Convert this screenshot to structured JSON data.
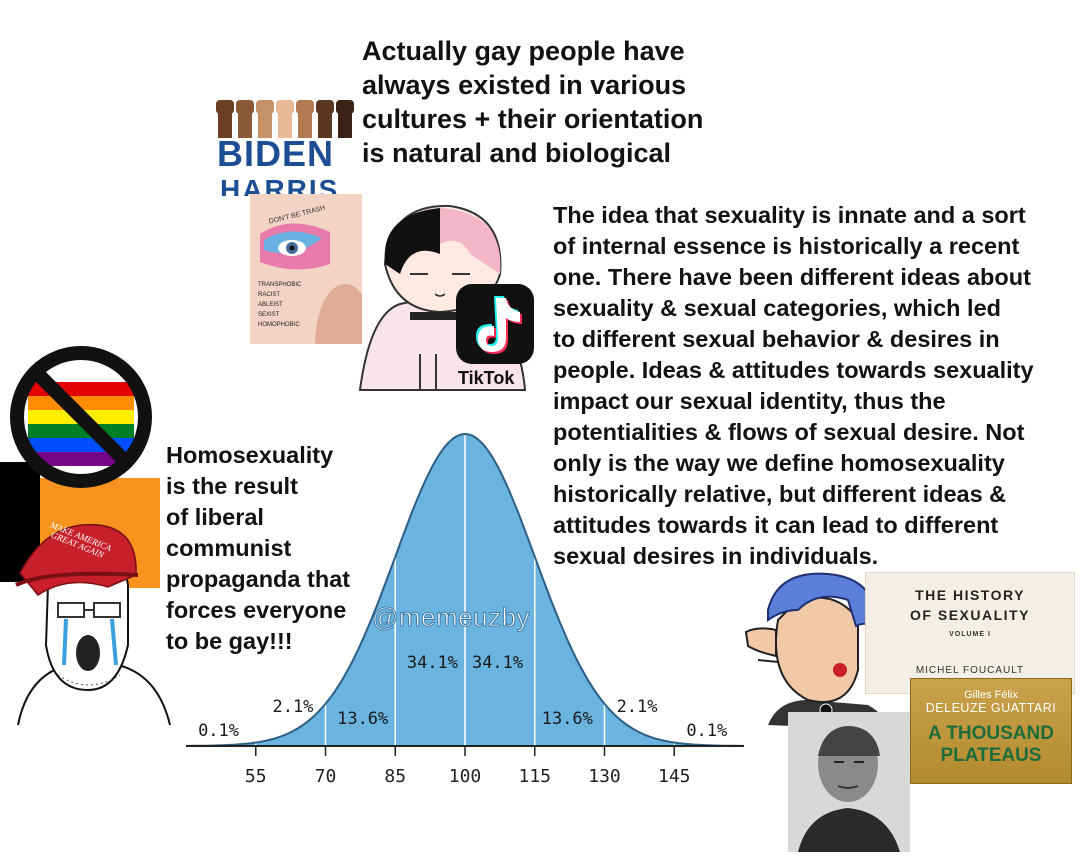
{
  "top_caption": {
    "lines": [
      "Actually gay people have",
      "always existed in various",
      "cultures + their orientation",
      "is natural and biological"
    ]
  },
  "right_caption": {
    "lines": [
      "The idea that sexuality is innate and a sort",
      "of internal essence is historically a recent",
      "one. There have been different ideas about",
      "sexuality & sexual categories, which led",
      "to different sexual behavior & desires in",
      "people. Ideas & attitudes towards sexuality",
      "impact our sexual identity, thus the",
      "potentialities & flows of sexual desire. Not",
      "only is the way we define homosexuality",
      "historically relative, but different ideas &",
      "attitudes towards it can lead to different",
      "sexual desires in individuals."
    ]
  },
  "left_caption": {
    "lines": [
      "Homosexuality",
      "is the result",
      "of liberal",
      "communist",
      "propaganda that",
      "forces everyone",
      "to be gay!!!"
    ]
  },
  "watermark": "@memeuzby",
  "logos": {
    "biden": "BIDEN",
    "harris": "HARRIS",
    "tiktok": "TikTok",
    "maga": "MAKE AMERICA GREAT AGAIN",
    "makeup_top": "DON'T BE TRASH",
    "makeup_list": [
      "TRANSPHOBIC",
      "RACIST",
      "ABLEIST",
      "SEXIST",
      "HOMOPHOBIC"
    ]
  },
  "book_history": {
    "title_lines": [
      "THE HISTORY",
      "OF SEXUALITY"
    ],
    "volume": "VOLUME I",
    "author": "MICHEL FOUCAULT"
  },
  "book_plateaus": {
    "authors_first": "Gilles Félix",
    "authors_last": "DELEUZE GUATTARI",
    "title_lines": [
      "A THOUSAND",
      "PLATEAUS"
    ]
  },
  "colors": {
    "text": "#121212",
    "curve_fill": "#6cb4e0",
    "curve_stroke": "#2b5f86",
    "biden_blue": "#1d4e94",
    "maga_red": "#c8202a",
    "no_sign": "#111111"
  },
  "chart_data": {
    "type": "area",
    "x_ticks": [
      "55",
      "70",
      "85",
      "100",
      "115",
      "130",
      "145"
    ],
    "x_values": [
      55,
      70,
      85,
      100,
      115,
      130,
      145
    ],
    "mean": 100,
    "sd": 15,
    "xlim": [
      40,
      160
    ],
    "segment_labels": [
      "0.1%",
      "2.1%",
      "13.6%",
      "34.1%",
      "34.1%",
      "13.6%",
      "2.1%",
      "0.1%"
    ],
    "grid": false
  }
}
